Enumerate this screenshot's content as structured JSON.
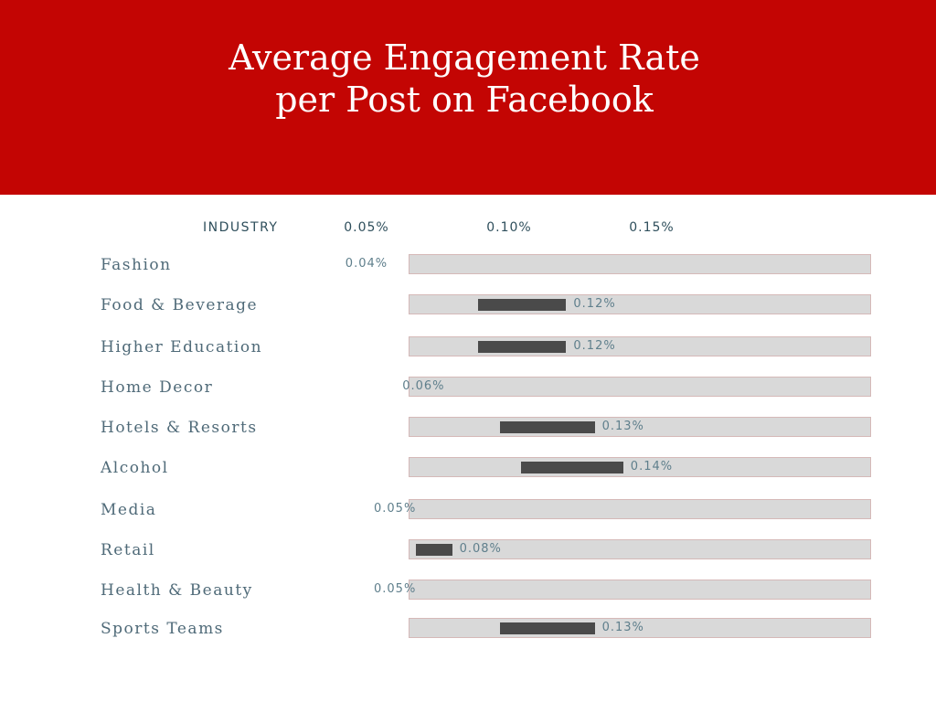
{
  "header": {
    "title_line1": "Average Engagement Rate",
    "title_line2": "per Post on Facebook",
    "background": "#c30503"
  },
  "table": {
    "category_header": "INDUSTRY"
  },
  "chart_data": {
    "type": "bar",
    "orientation": "horizontal",
    "title": "Average Engagement Rate per Post on Facebook",
    "xlabel": "",
    "ylabel": "INDUSTRY",
    "x_ticks": [
      "0.05%",
      "0.10%",
      "0.15%"
    ],
    "x_tick_values": [
      0.05,
      0.1,
      0.15
    ],
    "categories": [
      "Fashion",
      "Food & Beverage",
      "Higher Education",
      "Home Decor",
      "Hotels & Resorts",
      "Alcohol",
      "Media",
      "Retail",
      "Health & Beauty",
      "Sports Teams"
    ],
    "values": [
      0.04,
      0.12,
      0.12,
      0.06,
      0.13,
      0.14,
      0.05,
      0.08,
      0.05,
      0.13
    ],
    "value_labels": [
      "0.04%",
      "0.12%",
      "0.12%",
      "0.06%",
      "0.13%",
      "0.14%",
      "0.05%",
      "0.08%",
      "0.05%",
      "0.13%"
    ],
    "bar_color": "#4a4a4a",
    "track_color": "#d9d9d9",
    "grid": false,
    "legend": "none"
  }
}
